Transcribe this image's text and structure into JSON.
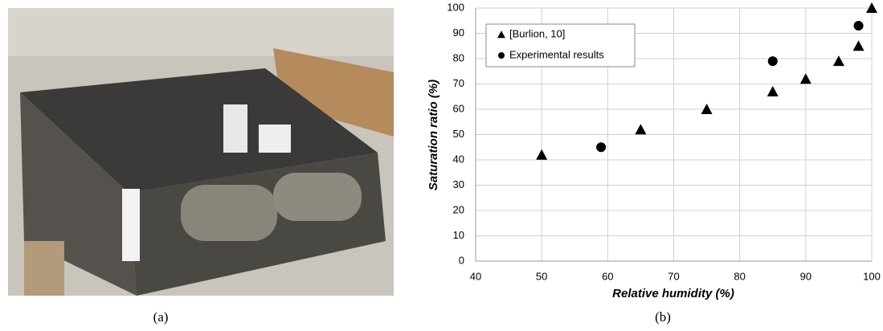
{
  "chart_data": {
    "type": "scatter",
    "xlabel": "Relative humidity (%)",
    "ylabel": "Saturation ratio (%)",
    "xlim": [
      40,
      100
    ],
    "xticks": [
      40,
      50,
      60,
      70,
      80,
      90,
      100
    ],
    "ylim": [
      0,
      100
    ],
    "yticks": [
      0,
      10,
      20,
      30,
      40,
      50,
      60,
      70,
      80,
      90,
      100
    ],
    "grid": true,
    "legend": "upper left",
    "series": [
      {
        "name": "[Burlion, 10]",
        "marker": "triangle",
        "color": "#000000",
        "x": [
          50,
          65,
          75,
          85,
          90,
          95,
          98,
          100
        ],
        "values": [
          42,
          52,
          60,
          67,
          72,
          79,
          85,
          100
        ]
      },
      {
        "name": "Experimental results",
        "marker": "circle",
        "color": "#000000",
        "x": [
          59,
          85,
          98
        ],
        "values": [
          45,
          79,
          93
        ]
      }
    ]
  },
  "captions": [
    "(a)",
    "(b)"
  ]
}
